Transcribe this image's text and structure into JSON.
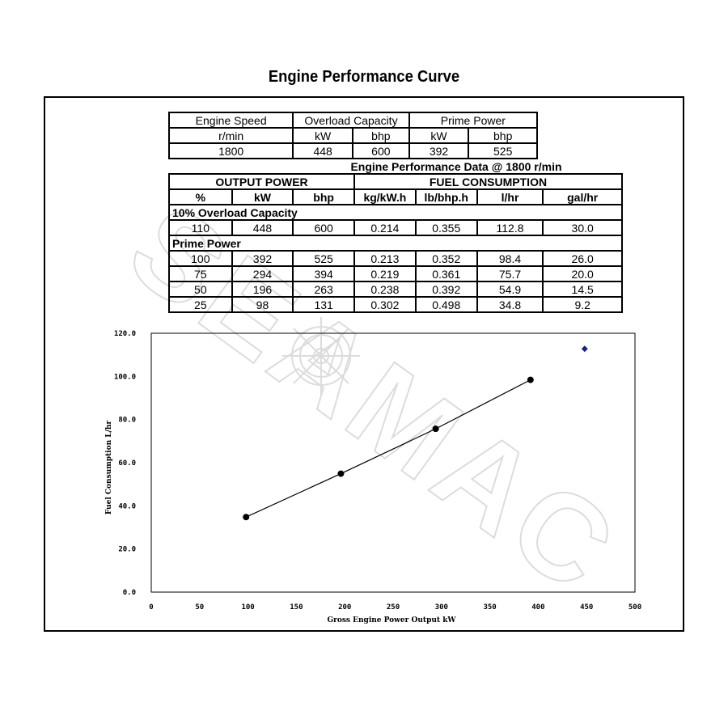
{
  "title": "Engine Performance Curve",
  "spec_table": {
    "headers": [
      "Engine Speed",
      "Overload Capacity",
      "Prime Power"
    ],
    "units": [
      "r/min",
      "kW",
      "bhp",
      "kW",
      "bhp"
    ],
    "values": [
      "1800",
      "448",
      "600",
      "392",
      "525"
    ]
  },
  "perf_table": {
    "caption": "Engine Performance Data @ 1800 r/min",
    "group_headers": [
      "OUTPUT POWER",
      "FUEL CONSUMPTION"
    ],
    "columns": [
      "%",
      "kW",
      "bhp",
      "kg/kW.h",
      "lb/bhp.h",
      "l/hr",
      "gal/hr"
    ],
    "sections": [
      {
        "label": "10% Overload Capacity",
        "rows": [
          [
            "110",
            "448",
            "600",
            "0.214",
            "0.355",
            "112.8",
            "30.0"
          ]
        ]
      },
      {
        "label": "Prime Power",
        "rows": [
          [
            "100",
            "392",
            "525",
            "0.213",
            "0.352",
            "98.4",
            "26.0"
          ],
          [
            "75",
            "294",
            "394",
            "0.219",
            "0.361",
            "75.7",
            "20.0"
          ],
          [
            "50",
            "196",
            "263",
            "0.238",
            "0.392",
            "54.9",
            "14.5"
          ],
          [
            "25",
            "98",
            "131",
            "0.302",
            "0.498",
            "34.8",
            "9.2"
          ]
        ]
      }
    ]
  },
  "watermark": "SEAMAC",
  "chart_data": {
    "type": "line",
    "xlabel": "Gross Engine Power Output  kW",
    "ylabel": "Fuel Consumption  L/hr",
    "xlim": [
      0,
      500
    ],
    "ylim": [
      0,
      120
    ],
    "x_ticks": [
      "0",
      "50",
      "100",
      "150",
      "200",
      "250",
      "300",
      "350",
      "400",
      "450",
      "500"
    ],
    "y_ticks": [
      "0.0",
      "20.0",
      "40.0",
      "60.0",
      "80.0",
      "100.0",
      "120.0"
    ],
    "grid": false,
    "series": [
      {
        "points": [
          [
            98,
            34.8
          ],
          [
            196,
            54.9
          ],
          [
            294,
            75.7
          ],
          [
            392,
            98.4
          ]
        ],
        "color": "#000000",
        "marker": "circle"
      },
      {
        "points": [
          [
            448,
            112.8
          ]
        ],
        "color": "#1a237e",
        "marker": "diamond"
      }
    ]
  }
}
